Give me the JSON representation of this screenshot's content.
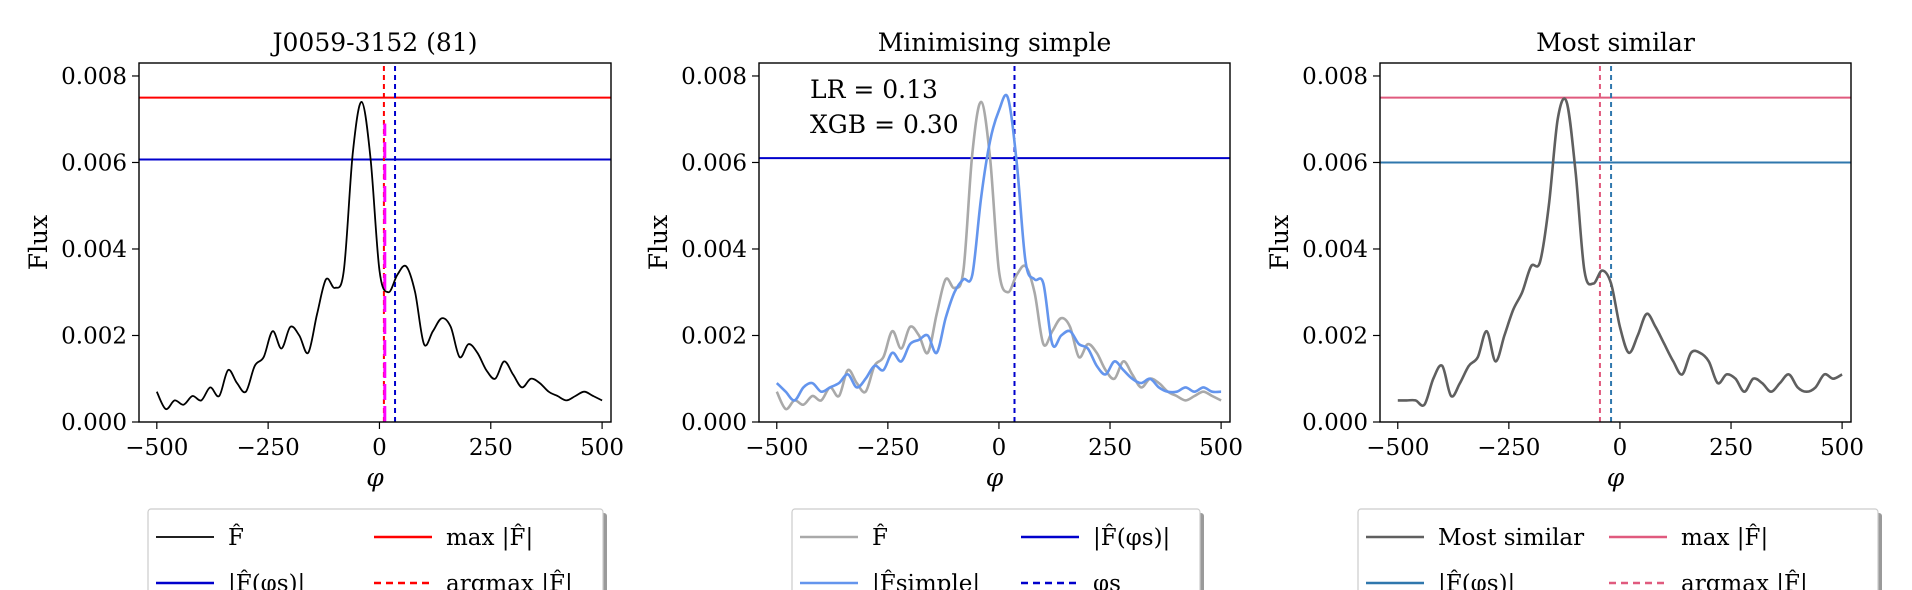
{
  "colors": {
    "black": "#000000",
    "red": "#ff0000",
    "blue": "#0000cc",
    "magenta": "#ff00ff",
    "gray": "#a9a9a9",
    "cornflower": "#6495ed",
    "dimgray": "#5f5f5f",
    "pink": "#e05a7e",
    "steelblue": "#2f77ad"
  },
  "chart_data": [
    {
      "type": "line",
      "title": "J0059-3152 (81)",
      "xlabel": "φ",
      "ylabel": "Flux",
      "xlim": [
        -540,
        520
      ],
      "ylim": [
        0,
        0.0083
      ],
      "xticks": [
        -500,
        -250,
        0,
        250,
        500
      ],
      "xtick_labels": [
        "−500",
        "−250",
        "0",
        "250",
        "500"
      ],
      "yticks": [
        0,
        0.002,
        0.004,
        0.006,
        0.008
      ],
      "ytick_labels": [
        "0.000",
        "0.002",
        "0.004",
        "0.006",
        "0.008"
      ],
      "series": [
        {
          "name": "F̂",
          "role": "curve",
          "color": "#000000",
          "style": "solid",
          "x": [
            -500,
            -480,
            -460,
            -440,
            -420,
            -400,
            -380,
            -360,
            -340,
            -320,
            -300,
            -280,
            -260,
            -240,
            -220,
            -200,
            -180,
            -160,
            -140,
            -120,
            -100,
            -80,
            -60,
            -40,
            -20,
            0,
            20,
            40,
            60,
            80,
            100,
            120,
            140,
            160,
            180,
            200,
            220,
            240,
            260,
            280,
            300,
            320,
            340,
            360,
            380,
            400,
            420,
            440,
            460,
            480,
            500
          ],
          "y": [
            0.0007,
            0.0003,
            0.0005,
            0.0004,
            0.0006,
            0.0005,
            0.0008,
            0.0006,
            0.0012,
            0.0009,
            0.0007,
            0.0013,
            0.0015,
            0.0021,
            0.0017,
            0.0022,
            0.002,
            0.0016,
            0.0025,
            0.0033,
            0.0031,
            0.0035,
            0.0062,
            0.0074,
            0.0061,
            0.0035,
            0.003,
            0.0034,
            0.0036,
            0.003,
            0.0018,
            0.0021,
            0.0024,
            0.0022,
            0.0015,
            0.0018,
            0.0016,
            0.0012,
            0.001,
            0.0014,
            0.0011,
            0.0008,
            0.001,
            0.0009,
            0.0007,
            0.0006,
            0.0005,
            0.0006,
            0.0007,
            0.0006,
            0.0005
          ]
        },
        {
          "name": "max |F̂|",
          "role": "hline",
          "y": 0.0075,
          "color": "#ff0000",
          "style": "solid"
        },
        {
          "name": "|F̂(φs)|",
          "role": "hline",
          "y": 0.00607,
          "color": "#0000cc",
          "style": "solid"
        },
        {
          "name": "argmax |F̂|",
          "role": "vline",
          "x": 10,
          "color": "#ff0000",
          "style": "dashed"
        },
        {
          "name": "φs",
          "role": "vline",
          "x": 35,
          "color": "#0000cc",
          "style": "dashed"
        },
        {
          "name": "",
          "role": "vline",
          "x": 12,
          "color": "#ff00ff",
          "style": "longdash",
          "y0": 0,
          "y1": 0.0069
        }
      ],
      "annotations": [],
      "legend": {
        "placement": "below",
        "entries": [
          {
            "label": "F̂",
            "color": "#000000",
            "style": "solid"
          },
          {
            "label": "max |F̂|",
            "color": "#ff0000",
            "style": "solid"
          },
          {
            "label": "|F̂(φs)|",
            "color": "#0000cc",
            "style": "solid"
          },
          {
            "label": "argmax |F̂|",
            "color": "#ff0000",
            "style": "dashed"
          }
        ]
      }
    },
    {
      "type": "line",
      "title": "Minimising simple",
      "xlabel": "φ",
      "ylabel": "Flux",
      "xlim": [
        -540,
        520
      ],
      "ylim": [
        0,
        0.0083
      ],
      "xticks": [
        -500,
        -250,
        0,
        250,
        500
      ],
      "xtick_labels": [
        "−500",
        "−250",
        "0",
        "250",
        "500"
      ],
      "yticks": [
        0,
        0.002,
        0.004,
        0.006,
        0.008
      ],
      "ytick_labels": [
        "0.000",
        "0.002",
        "0.004",
        "0.006",
        "0.008"
      ],
      "series": [
        {
          "name": "F̂",
          "role": "curve",
          "color": "#a9a9a9",
          "style": "solid",
          "x": [
            -500,
            -480,
            -460,
            -440,
            -420,
            -400,
            -380,
            -360,
            -340,
            -320,
            -300,
            -280,
            -260,
            -240,
            -220,
            -200,
            -180,
            -160,
            -140,
            -120,
            -100,
            -80,
            -60,
            -40,
            -20,
            0,
            20,
            40,
            60,
            80,
            100,
            120,
            140,
            160,
            180,
            200,
            220,
            240,
            260,
            280,
            300,
            320,
            340,
            360,
            380,
            400,
            420,
            440,
            460,
            480,
            500
          ],
          "y": [
            0.0007,
            0.0003,
            0.0005,
            0.0004,
            0.0006,
            0.0005,
            0.0008,
            0.0006,
            0.0012,
            0.0009,
            0.0007,
            0.0013,
            0.0015,
            0.0021,
            0.0017,
            0.0022,
            0.002,
            0.0016,
            0.0025,
            0.0033,
            0.0031,
            0.0035,
            0.0062,
            0.0074,
            0.0061,
            0.0035,
            0.003,
            0.0034,
            0.0036,
            0.003,
            0.0018,
            0.0021,
            0.0024,
            0.0022,
            0.0015,
            0.0018,
            0.0016,
            0.0012,
            0.001,
            0.0014,
            0.0011,
            0.0008,
            0.001,
            0.0009,
            0.0007,
            0.0006,
            0.0005,
            0.0006,
            0.0007,
            0.0006,
            0.0005
          ]
        },
        {
          "name": "|F̂simple|",
          "role": "curve",
          "color": "#6495ed",
          "style": "solid",
          "x": [
            -500,
            -480,
            -460,
            -440,
            -420,
            -400,
            -380,
            -360,
            -340,
            -320,
            -300,
            -280,
            -260,
            -240,
            -220,
            -200,
            -180,
            -160,
            -140,
            -120,
            -100,
            -80,
            -60,
            -40,
            -20,
            0,
            20,
            40,
            60,
            80,
            100,
            120,
            140,
            160,
            180,
            200,
            220,
            240,
            260,
            280,
            300,
            320,
            340,
            360,
            380,
            400,
            420,
            440,
            460,
            480,
            500
          ],
          "y": [
            0.0009,
            0.0007,
            0.0005,
            0.0008,
            0.0009,
            0.0007,
            0.0008,
            0.0009,
            0.0011,
            0.0008,
            0.001,
            0.0013,
            0.0012,
            0.0016,
            0.0014,
            0.0018,
            0.0019,
            0.002,
            0.0016,
            0.0024,
            0.003,
            0.0033,
            0.0034,
            0.0052,
            0.0065,
            0.0072,
            0.0075,
            0.006,
            0.0037,
            0.0033,
            0.0032,
            0.0018,
            0.002,
            0.0021,
            0.0018,
            0.0017,
            0.0013,
            0.0011,
            0.0014,
            0.0012,
            0.001,
            0.0009,
            0.001,
            0.0008,
            0.0007,
            0.0007,
            0.0008,
            0.0007,
            0.0008,
            0.0007,
            0.0007
          ]
        },
        {
          "name": "|F̂(φs)|",
          "role": "hline",
          "y": 0.0061,
          "color": "#0000cc",
          "style": "solid"
        },
        {
          "name": "φs",
          "role": "vline",
          "x": 35,
          "color": "#0000cc",
          "style": "dashed"
        }
      ],
      "annotations": [
        "LR = 0.13",
        "XGB = 0.30"
      ],
      "legend": {
        "placement": "below",
        "entries": [
          {
            "label": "F̂",
            "color": "#a9a9a9",
            "style": "solid"
          },
          {
            "label": "|F̂(φs)|",
            "color": "#0000cc",
            "style": "solid"
          },
          {
            "label": "|F̂simple|",
            "color": "#6495ed",
            "style": "solid"
          },
          {
            "label": "φs",
            "color": "#0000cc",
            "style": "dashed"
          }
        ]
      }
    },
    {
      "type": "line",
      "title": "Most similar",
      "xlabel": "φ",
      "ylabel": "Flux",
      "xlim": [
        -540,
        520
      ],
      "ylim": [
        0,
        0.0083
      ],
      "xticks": [
        -500,
        -250,
        0,
        250,
        500
      ],
      "xtick_labels": [
        "−500",
        "−250",
        "0",
        "250",
        "500"
      ],
      "yticks": [
        0,
        0.002,
        0.004,
        0.006,
        0.008
      ],
      "ytick_labels": [
        "0.000",
        "0.002",
        "0.004",
        "0.006",
        "0.008"
      ],
      "series": [
        {
          "name": "Most similar",
          "role": "curve",
          "color": "#5f5f5f",
          "style": "solid",
          "x": [
            -500,
            -480,
            -460,
            -440,
            -420,
            -400,
            -380,
            -360,
            -340,
            -320,
            -300,
            -280,
            -260,
            -240,
            -220,
            -200,
            -180,
            -160,
            -140,
            -120,
            -100,
            -80,
            -60,
            -40,
            -20,
            0,
            20,
            40,
            60,
            80,
            100,
            120,
            140,
            160,
            180,
            200,
            220,
            240,
            260,
            280,
            300,
            320,
            340,
            360,
            380,
            400,
            420,
            440,
            460,
            480,
            500
          ],
          "y": [
            0.0005,
            0.0005,
            0.0005,
            0.0004,
            0.001,
            0.0013,
            0.0006,
            0.0009,
            0.0013,
            0.0015,
            0.0021,
            0.0014,
            0.002,
            0.0026,
            0.003,
            0.0036,
            0.0037,
            0.005,
            0.007,
            0.0074,
            0.0058,
            0.0035,
            0.0032,
            0.0035,
            0.0032,
            0.0022,
            0.0016,
            0.002,
            0.0025,
            0.0022,
            0.0018,
            0.0014,
            0.0011,
            0.0016,
            0.0016,
            0.0014,
            0.0009,
            0.0011,
            0.001,
            0.0007,
            0.001,
            0.0009,
            0.0007,
            0.0009,
            0.0011,
            0.0008,
            0.0007,
            0.0008,
            0.0011,
            0.001,
            0.0011
          ]
        },
        {
          "name": "max |F̂|",
          "role": "hline",
          "y": 0.0075,
          "color": "#e05a7e",
          "style": "solid"
        },
        {
          "name": "|F̂(φs)|",
          "role": "hline",
          "y": 0.006,
          "color": "#2f77ad",
          "style": "solid"
        },
        {
          "name": "argmax |F̂|",
          "role": "vline",
          "x": -45,
          "color": "#e05a7e",
          "style": "dashed"
        },
        {
          "name": "",
          "role": "vline",
          "x": -20,
          "color": "#2f77ad",
          "style": "dashed"
        }
      ],
      "annotations": [],
      "legend": {
        "placement": "below",
        "entries": [
          {
            "label": "Most similar",
            "color": "#5f5f5f",
            "style": "solid"
          },
          {
            "label": "max |F̂|",
            "color": "#e05a7e",
            "style": "solid"
          },
          {
            "label": "|F̂(φs)|",
            "color": "#2f77ad",
            "style": "solid"
          },
          {
            "label": "argmax |F̂|",
            "color": "#e05a7e",
            "style": "dashed"
          }
        ]
      }
    }
  ]
}
